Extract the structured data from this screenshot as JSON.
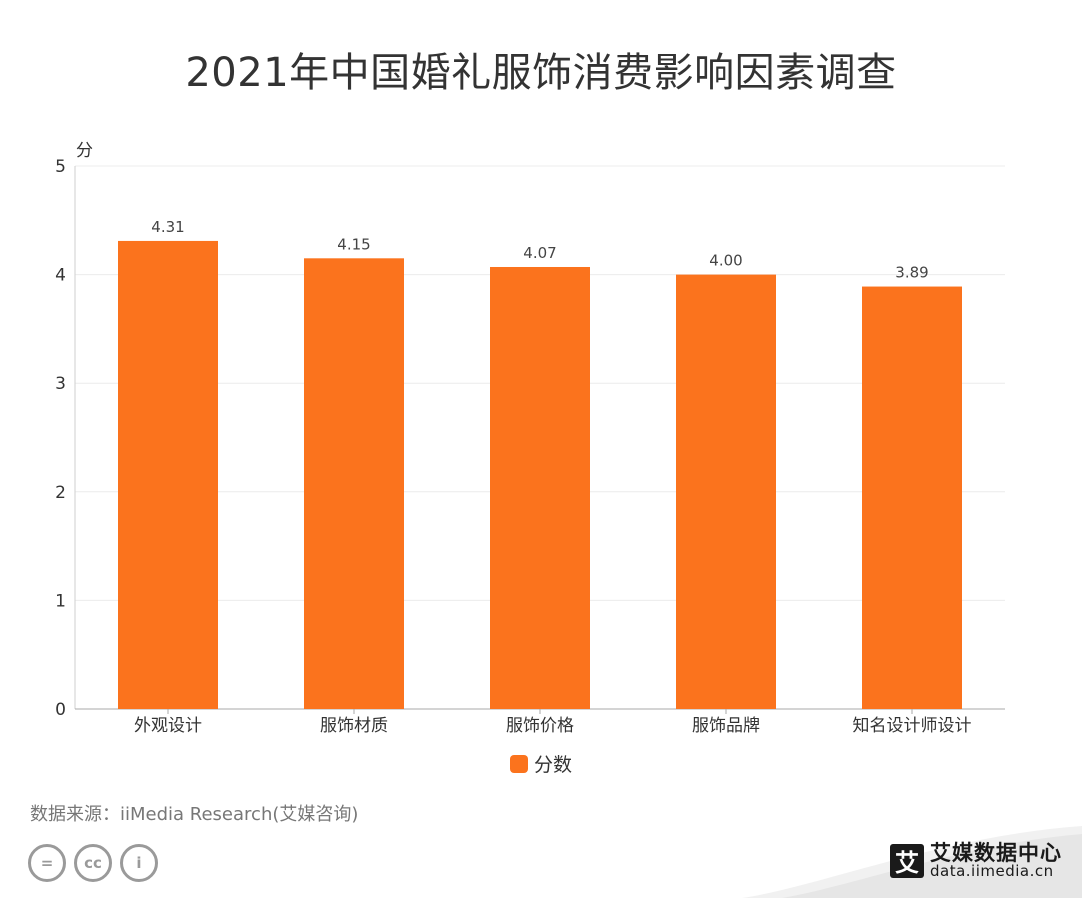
{
  "chart_data": {
    "type": "bar",
    "title": "2021年中国婚礼服饰消费影响因素调查",
    "categories": [
      "外观设计",
      "服饰材质",
      "服饰价格",
      "服饰品牌",
      "知名设计师设计"
    ],
    "series": [
      {
        "name": "分数",
        "values": [
          4.31,
          4.15,
          4.07,
          4.0,
          3.89
        ],
        "labels": [
          "4.31",
          "4.15",
          "4.07",
          "4.00",
          "3.89"
        ]
      }
    ],
    "ylabel": "分",
    "ylim": [
      0,
      5
    ],
    "yticks": [
      "0",
      "1",
      "2",
      "3",
      "4",
      "5"
    ],
    "grid": true,
    "legend_position": "bottom-center",
    "bar_color": "#fb731d"
  },
  "footer": {
    "source": "数据来源：iiMedia Research(艾媒咨询)",
    "cc_icons": [
      "=",
      "cc",
      "i"
    ],
    "brand_logo_char": "艾",
    "brand_name": "艾媒数据中心",
    "brand_url": "data.iimedia.cn"
  }
}
